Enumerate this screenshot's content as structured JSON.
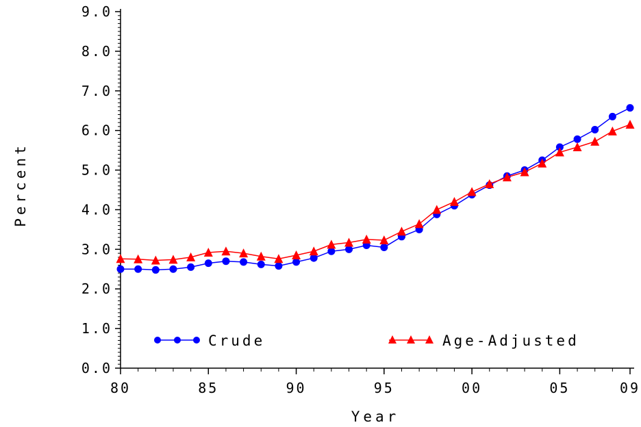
{
  "chart_data": {
    "type": "line",
    "title": "",
    "xlabel": "Year",
    "ylabel": "Percent",
    "x": [
      1980,
      1981,
      1982,
      1983,
      1984,
      1985,
      1986,
      1987,
      1988,
      1989,
      1990,
      1991,
      1992,
      1993,
      1994,
      1995,
      1996,
      1997,
      1998,
      1999,
      2000,
      2001,
      2002,
      2003,
      2004,
      2005,
      2006,
      2007,
      2008,
      2009
    ],
    "xlim": [
      1980,
      2009
    ],
    "ylim": [
      0,
      9
    ],
    "x_ticks": [
      1980,
      1985,
      1990,
      1995,
      2000,
      2005,
      2009
    ],
    "x_tick_labels": [
      "80",
      "85",
      "90",
      "95",
      "00",
      "05",
      "09"
    ],
    "y_ticks": [
      0,
      1,
      2,
      3,
      4,
      5,
      6,
      7,
      8,
      9
    ],
    "y_tick_labels": [
      "0.0",
      "1.0",
      "2.0",
      "3.0",
      "4.0",
      "5.0",
      "6.0",
      "7.0",
      "8.0",
      "9.0"
    ],
    "grid": false,
    "legend_position": "bottom-inside",
    "series": [
      {
        "name": "Crude",
        "color": "#0000ff",
        "marker": "circle",
        "values": [
          2.5,
          2.5,
          2.48,
          2.5,
          2.55,
          2.65,
          2.7,
          2.68,
          2.62,
          2.58,
          2.68,
          2.78,
          2.95,
          3.0,
          3.1,
          3.05,
          3.32,
          3.5,
          3.88,
          4.1,
          4.38,
          4.62,
          4.85,
          5.0,
          5.25,
          5.58,
          5.78,
          6.02,
          6.35,
          6.57
        ]
      },
      {
        "name": "Age-Adjusted",
        "color": "#ff0000",
        "marker": "triangle",
        "values": [
          2.76,
          2.75,
          2.72,
          2.74,
          2.8,
          2.92,
          2.95,
          2.9,
          2.82,
          2.76,
          2.85,
          2.95,
          3.12,
          3.17,
          3.25,
          3.23,
          3.45,
          3.64,
          4.0,
          4.2,
          4.45,
          4.65,
          4.82,
          4.95,
          5.17,
          5.45,
          5.58,
          5.72,
          5.98,
          6.15
        ]
      }
    ]
  }
}
